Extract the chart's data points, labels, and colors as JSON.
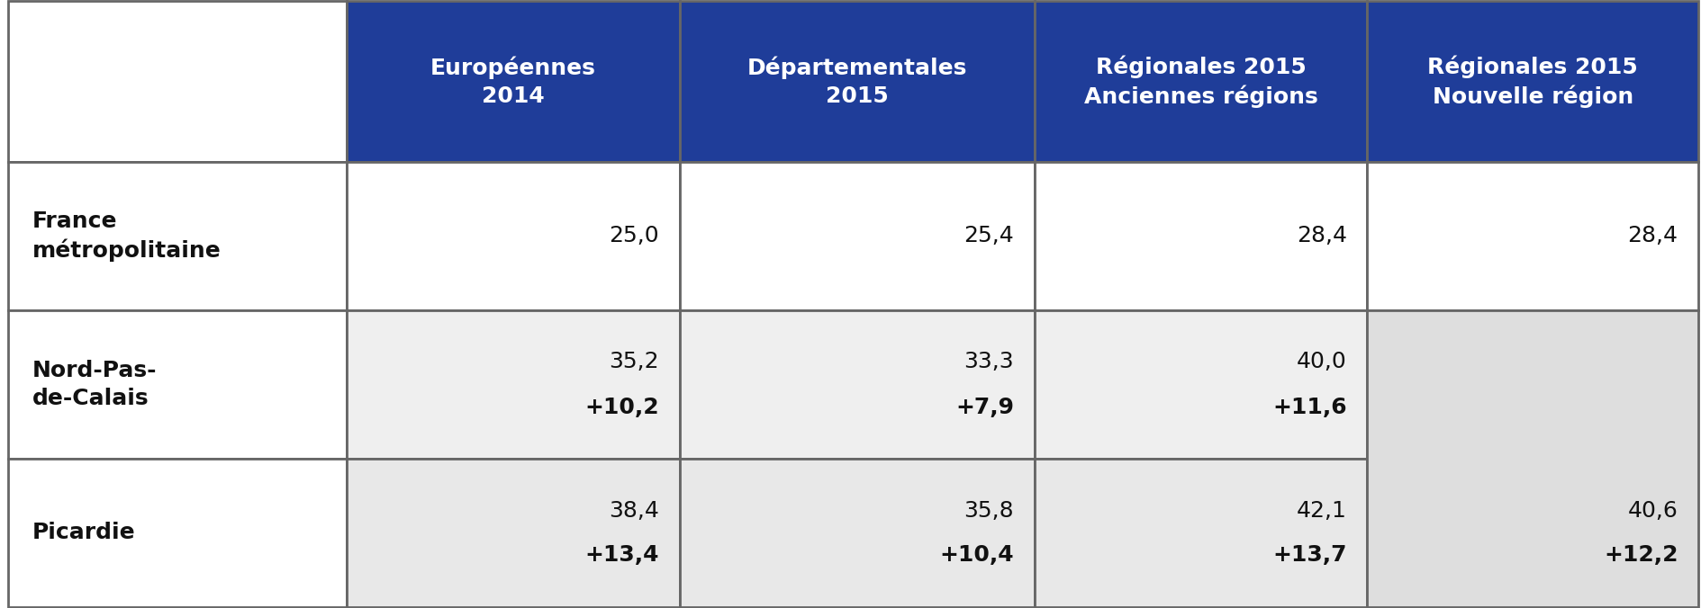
{
  "header_bg": "#1f3d99",
  "header_text_color": "#ffffff",
  "border_color": "#666666",
  "col_labels": [
    "Européennes\n2014",
    "Départementales\n2015",
    "Régionales 2015\nAnciennes régions",
    "Régionales 2015\nNouvelle région"
  ],
  "row_labels": [
    "France\nmétropolitaine",
    "Nord-Pas-\nde-Calais",
    "Picardie"
  ],
  "france_vals": [
    "25,0",
    "25,4",
    "28,4",
    "28,4"
  ],
  "nordpas_vals": [
    "35,2",
    "33,3",
    "40,0"
  ],
  "nordpas_diffs": [
    "+10,2",
    "+7,9",
    "+11,6"
  ],
  "picardie_vals": [
    "38,4",
    "35,8",
    "42,1"
  ],
  "picardie_diffs": [
    "+13,4",
    "+10,4",
    "+13,7"
  ],
  "merged_cell_value": "40,6",
  "merged_cell_diff": "+12,2",
  "row0_bg": "#ffffff",
  "row1_bg": "#efefef",
  "row2_bg": "#e8e8e8",
  "merged_bg": "#dedede",
  "figsize": [
    18.9,
    6.76
  ],
  "dpi": 100
}
